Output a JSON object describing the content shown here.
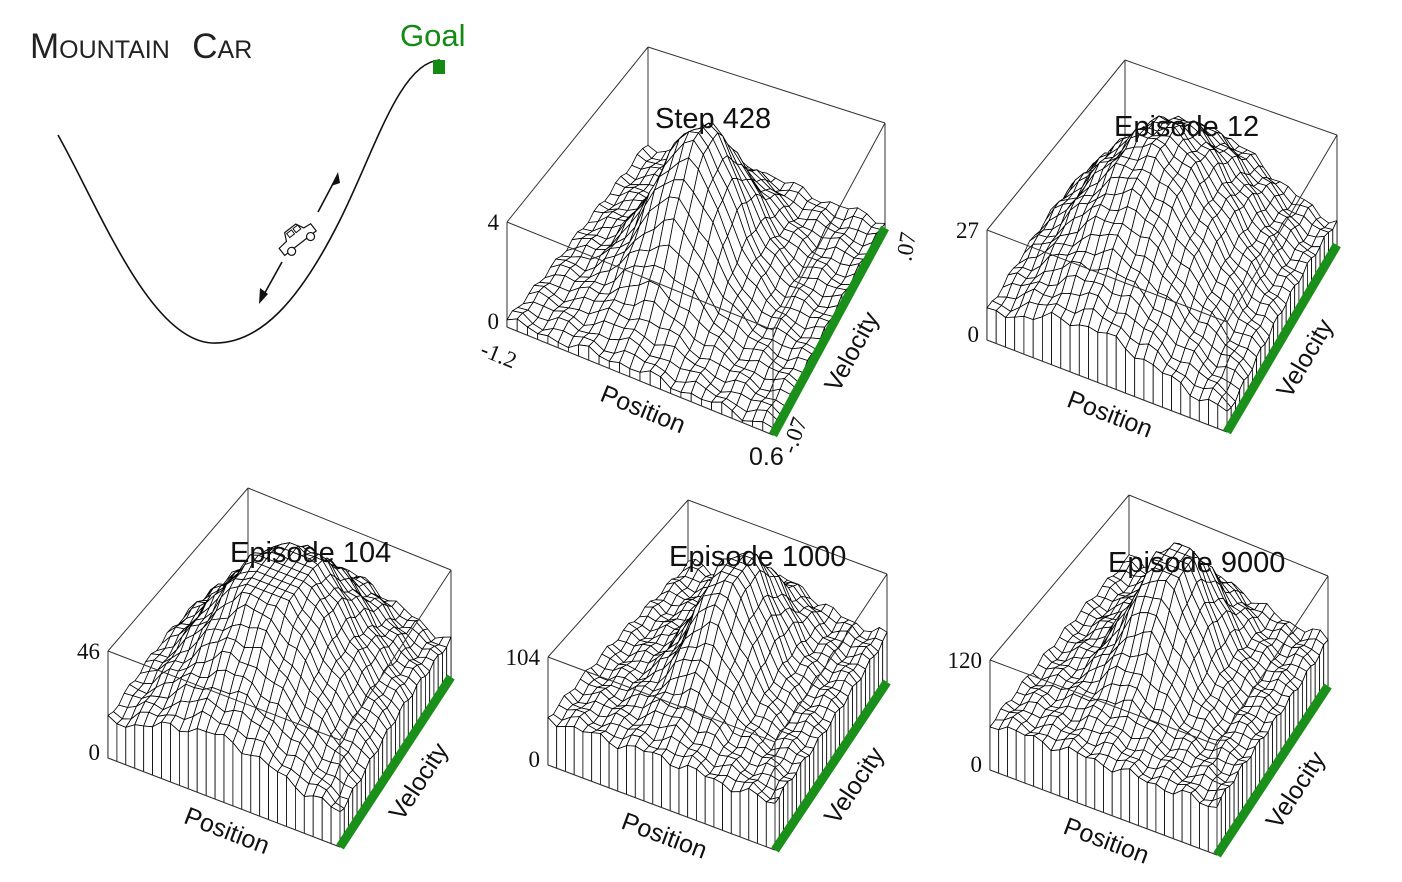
{
  "diagram": {
    "title": {
      "first_letter": "M",
      "first_rest": "OUNTAIN",
      "second_letter": "C",
      "second_rest": "AR"
    },
    "goal_label": "Goal",
    "goal_color": "#138a13",
    "track_color": "#1a8f1a",
    "icons": [
      "car-icon",
      "goal-flag-icon",
      "forward-arrow-icon",
      "backward-arrow-icon"
    ]
  },
  "panels": [
    {
      "title": "Step 428",
      "z_top_label": "4",
      "z_bottom_label": "0",
      "position_min_label": "-1.2",
      "position_max_label": "0.6",
      "velocity_min_label": "-.07",
      "velocity_max_label": ".07",
      "position_axis": "Position",
      "velocity_axis": "Velocity"
    },
    {
      "title": "Episode 12",
      "z_top_label": "27",
      "z_bottom_label": "0",
      "position_axis": "Position",
      "velocity_axis": "Velocity"
    },
    {
      "title": "Episode 104",
      "z_top_label": "46",
      "z_bottom_label": "0",
      "position_axis": "Position",
      "velocity_axis": "Velocity"
    },
    {
      "title": "Episode 1000",
      "z_top_label": "104",
      "z_bottom_label": "0",
      "position_axis": "Position",
      "velocity_axis": "Velocity"
    },
    {
      "title": "Episode 9000",
      "z_top_label": "120",
      "z_bottom_label": "0",
      "position_axis": "Position",
      "velocity_axis": "Velocity"
    }
  ]
}
